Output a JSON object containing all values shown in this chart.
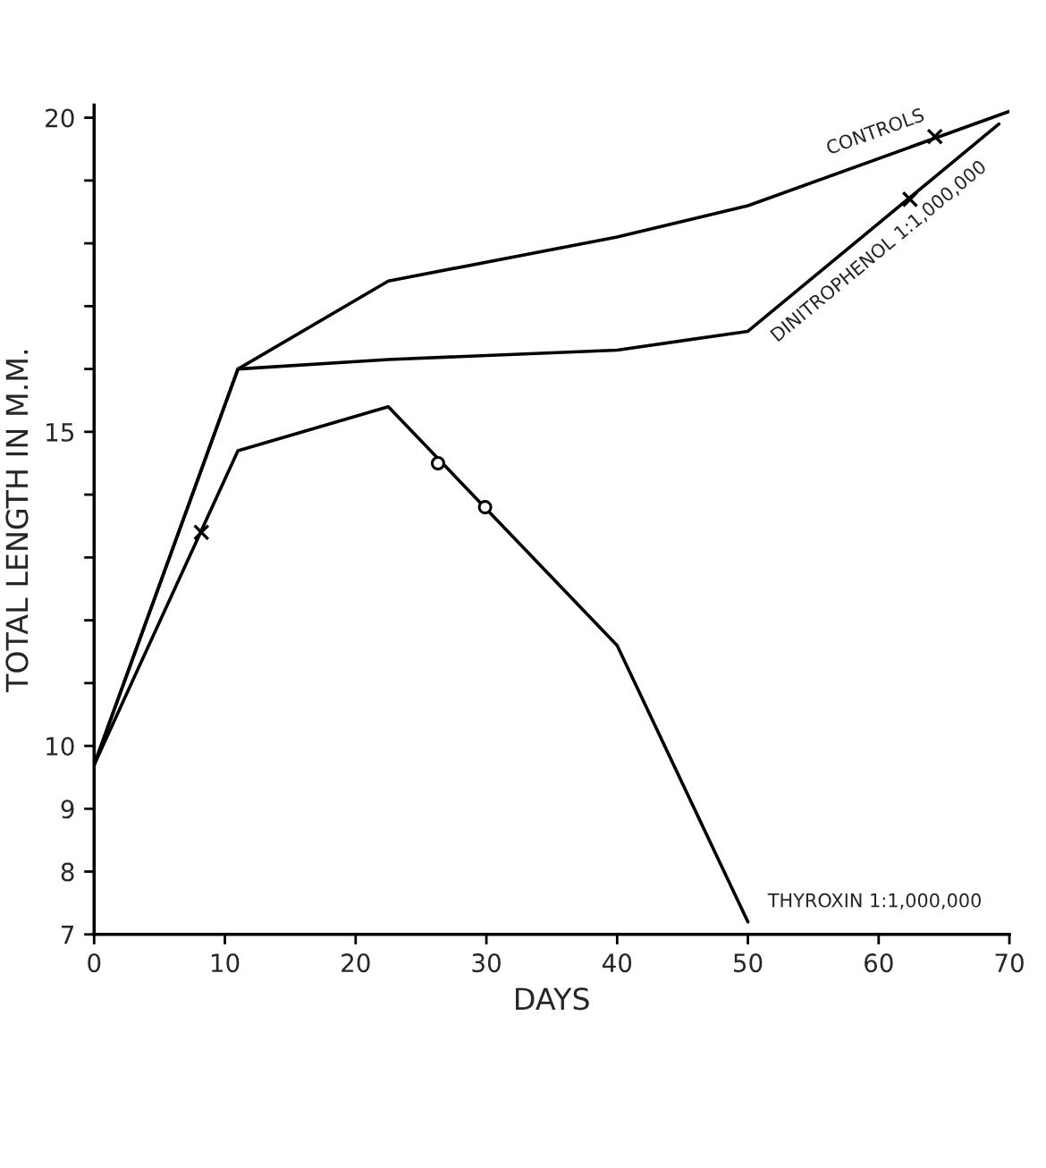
{
  "chart_data": {
    "type": "line",
    "xlabel": "DAYS",
    "ylabel": "TOTAL LENGTH IN M.M.",
    "xlim": [
      0,
      70
    ],
    "ylim": [
      7,
      20.2
    ],
    "xticks": [
      0,
      10,
      20,
      30,
      40,
      50,
      60,
      70
    ],
    "yticks": [
      7,
      8,
      9,
      10,
      {
        "value": 11,
        "label": null
      },
      {
        "value": 12,
        "label": null
      },
      {
        "value": 13,
        "label": null
      },
      {
        "value": 14,
        "label": null
      },
      15,
      {
        "value": 16,
        "label": null
      },
      {
        "value": 17,
        "label": null
      },
      {
        "value": 18,
        "label": null
      },
      {
        "value": 19,
        "label": null
      },
      20
    ],
    "grid": false,
    "legend": false,
    "series": [
      {
        "name": "CONTROLS",
        "color": "#000000",
        "x": [
          0,
          11,
          22.5,
          40,
          50,
          70
        ],
        "values": [
          9.7,
          16,
          17.4,
          18.1,
          18.6,
          20.1
        ]
      },
      {
        "name": "DINITROPHENOL 1:1,000,000",
        "color": "#000000",
        "x": [
          0,
          11,
          22.5,
          40,
          50,
          69.2
        ],
        "values": [
          9.7,
          16,
          16.15,
          16.3,
          16.6,
          19.9
        ]
      },
      {
        "name": "THYROXIN 1:1,000,000",
        "color": "#000000",
        "x": [
          0,
          11,
          22.5,
          40,
          50
        ],
        "values": [
          9.7,
          14.7,
          15.4,
          11.6,
          7.2
        ]
      },
      {
        "type": "scatter",
        "marker": "cross",
        "color": "#000000",
        "x": [
          8.2,
          62.4,
          64.3
        ],
        "values": [
          13.4,
          18.7,
          19.7
        ]
      },
      {
        "type": "scatter",
        "marker": "circle",
        "color": "#000000",
        "x": [
          26.3,
          29.9
        ],
        "values": [
          14.5,
          13.8
        ]
      }
    ]
  }
}
